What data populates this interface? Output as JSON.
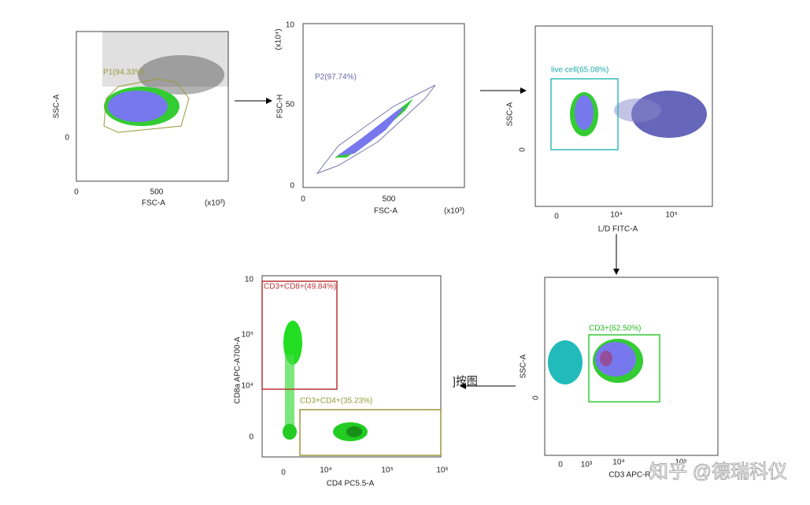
{
  "panels": [
    {
      "y_label": "SSC-A",
      "x_label": "FSC-A",
      "x_unit": "(x10³)",
      "x_ticks": [
        "0",
        "500"
      ],
      "y_ticks": [
        "0"
      ],
      "gate": "P1(94.33%)"
    },
    {
      "y_label": "FSC-H",
      "y_unit": "(x10⁴)",
      "x_label": "FSC-A",
      "x_unit": "(x10³)",
      "x_ticks": [
        "0",
        "500"
      ],
      "y_ticks": [
        "10",
        "50",
        "0"
      ],
      "gate": "P2(97.74%)"
    },
    {
      "y_label": "SSC-A",
      "x_label": "L/D FITC-A",
      "x_ticks": [
        "0",
        "10⁴",
        "10⁵"
      ],
      "y_ticks": [
        "0"
      ],
      "gate": "live cell(65.08%)"
    },
    {
      "y_label": "SSC-A",
      "x_label": "CD3 APC-R",
      "x_ticks": [
        "0",
        "10³",
        "10⁴",
        "10⁵"
      ],
      "y_ticks": [
        "0"
      ],
      "gate": "CD3+(62.50%)"
    },
    {
      "y_label": "CD8a APC-A700-A",
      "x_label": "CD4 PC5.5-A",
      "x_ticks": [
        "0",
        "10⁴",
        "10⁵",
        "10⁶"
      ],
      "y_ticks": [
        "10",
        "10⁵",
        "10⁴",
        "0"
      ],
      "gates": [
        "CD3+CD8+(49.84%)",
        "CD3+CD4+(35.23%)"
      ]
    }
  ],
  "arrow_note": "]按图",
  "watermark": "知乎 @德瑞科仪"
}
